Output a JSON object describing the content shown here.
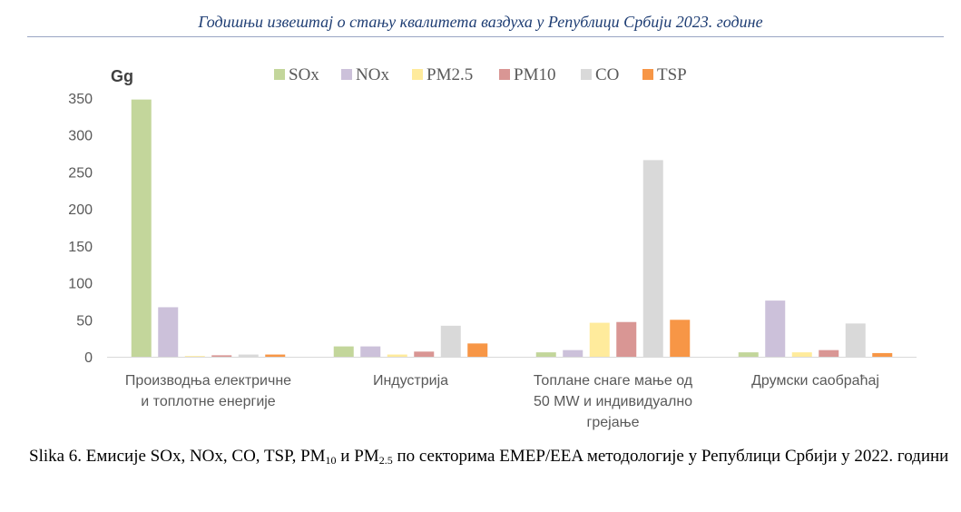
{
  "header": {
    "title": "Годишњи извештај о стању квалитета ваздуха у Републици Србији 2023. године"
  },
  "chart_data": {
    "type": "bar",
    "ylabel": "Gg",
    "ylim": [
      0,
      350
    ],
    "yticks": [
      0,
      50,
      100,
      150,
      200,
      250,
      300,
      350
    ],
    "grid": false,
    "legend_position": "top",
    "categories": [
      [
        "Производња електричне",
        "и топлотне енергије"
      ],
      [
        "Индустрија"
      ],
      [
        "Топлане снаге мање од",
        "50 MW и индивидуално",
        "грејање"
      ],
      [
        "Друмски саобраћај"
      ]
    ],
    "series": [
      {
        "name": "SOx",
        "color": "#c3d69b",
        "values": [
          348,
          14,
          6,
          6
        ]
      },
      {
        "name": "NOx",
        "color": "#ccc1da",
        "values": [
          67,
          14,
          9,
          76
        ]
      },
      {
        "name": "PM2.5",
        "color": "#ffeb9c",
        "values": [
          1,
          3,
          46,
          6
        ]
      },
      {
        "name": "PM10",
        "color": "#d99694",
        "values": [
          2,
          7,
          47,
          9
        ]
      },
      {
        "name": "CO",
        "color": "#d9d9d9",
        "values": [
          3,
          42,
          266,
          45
        ]
      },
      {
        "name": "TSP",
        "color": "#f79646",
        "values": [
          3,
          18,
          50,
          5
        ]
      }
    ]
  },
  "caption": {
    "prefix": "Slika 6. Емисије SOx, NOx, CO, TSP, PM",
    "sub1": "10",
    "middle": " и PM",
    "sub2": "2.5",
    "suffix": " по секторима EMEP/EEA методологије у Републици Србији у 2022. години"
  }
}
